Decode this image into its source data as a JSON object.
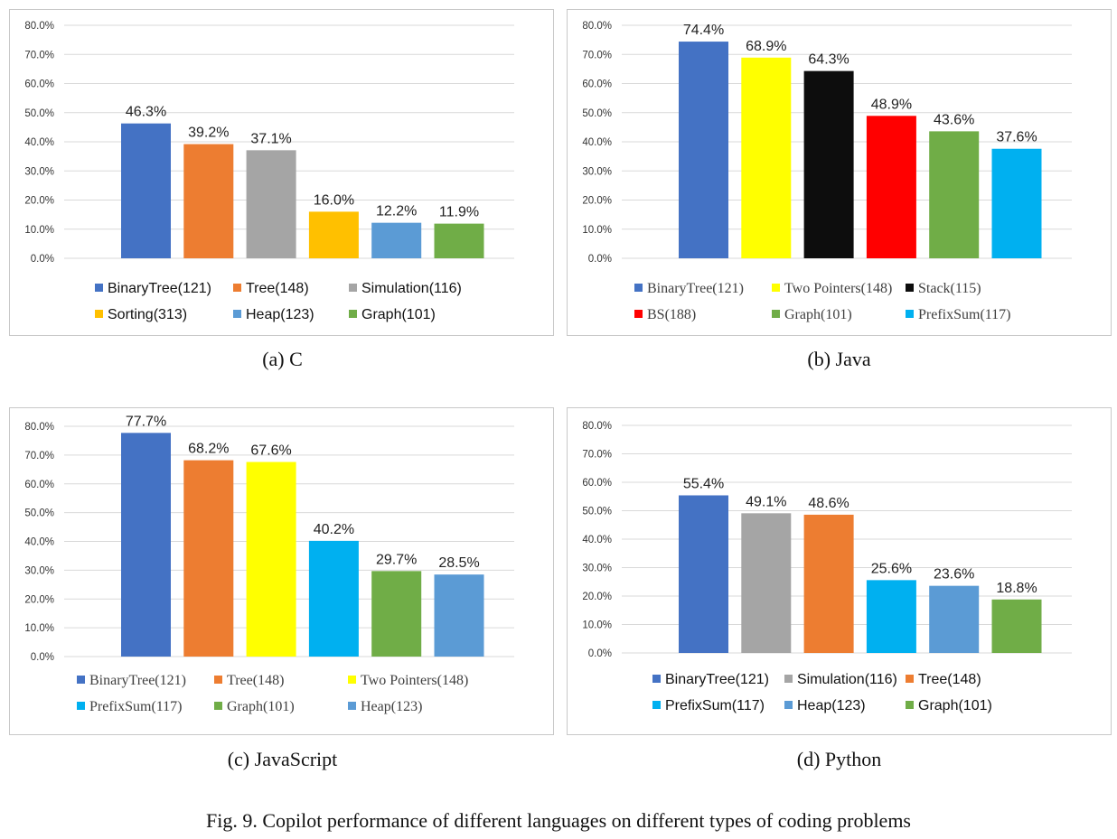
{
  "figure_caption": "Fig. 9.  Copilot performance of different languages on different types of coding problems",
  "chart_data": [
    {
      "type": "bar",
      "subcaption": "(a) C",
      "categories": [
        "BinaryTree(121)",
        "Tree(148)",
        "Simulation(116)",
        "Sorting(313)",
        "Heap(123)",
        "Graph(101)"
      ],
      "values": [
        46.3,
        39.2,
        37.1,
        16.0,
        12.2,
        11.9
      ],
      "value_labels": [
        "46.3%",
        "39.2%",
        "37.1%",
        "16.0%",
        "12.2%",
        "11.9%"
      ],
      "colors": [
        "#4472c4",
        "#ed7d31",
        "#a5a5a5",
        "#ffc000",
        "#5b9bd5",
        "#70ad47"
      ],
      "yticks": [
        "0.0%",
        "10.0%",
        "20.0%",
        "30.0%",
        "40.0%",
        "50.0%",
        "60.0%",
        "70.0%",
        "80.0%"
      ],
      "ylim": [
        0,
        80
      ],
      "grid": true,
      "legend_position": "bottom"
    },
    {
      "type": "bar",
      "subcaption": "(b) Java",
      "categories": [
        "BinaryTree(121)",
        "Two Pointers(148)",
        "Stack(115)",
        "BS(188)",
        "Graph(101)",
        "PrefixSum(117)"
      ],
      "values": [
        74.4,
        68.9,
        64.3,
        48.9,
        43.6,
        37.6
      ],
      "value_labels": [
        "74.4%",
        "68.9%",
        "64.3%",
        "48.9%",
        "43.6%",
        "37.6%"
      ],
      "colors": [
        "#4472c4",
        "#ffff00",
        "#0d0d0d",
        "#ff0000",
        "#70ad47",
        "#00b0f0"
      ],
      "yticks": [
        "0.0%",
        "10.0%",
        "20.0%",
        "30.0%",
        "40.0%",
        "50.0%",
        "60.0%",
        "70.0%",
        "80.0%"
      ],
      "ylim": [
        0,
        80
      ],
      "grid": true,
      "legend_position": "bottom"
    },
    {
      "type": "bar",
      "subcaption": "(c) JavaScript",
      "categories": [
        "BinaryTree(121)",
        "Tree(148)",
        "Two Pointers(148)",
        "PrefixSum(117)",
        "Graph(101)",
        "Heap(123)"
      ],
      "values": [
        77.7,
        68.2,
        67.6,
        40.2,
        29.7,
        28.5
      ],
      "value_labels": [
        "77.7%",
        "68.2%",
        "67.6%",
        "40.2%",
        "29.7%",
        "28.5%"
      ],
      "colors": [
        "#4472c4",
        "#ed7d31",
        "#ffff00",
        "#00b0f0",
        "#70ad47",
        "#5b9bd5"
      ],
      "yticks": [
        "0.0%",
        "10.0%",
        "20.0%",
        "30.0%",
        "40.0%",
        "50.0%",
        "60.0%",
        "70.0%",
        "80.0%"
      ],
      "ylim": [
        0,
        80
      ],
      "grid": true,
      "legend_position": "bottom"
    },
    {
      "type": "bar",
      "subcaption": "(d) Python",
      "categories": [
        "BinaryTree(121)",
        "Simulation(116)",
        "Tree(148)",
        "PrefixSum(117)",
        "Heap(123)",
        "Graph(101)"
      ],
      "values": [
        55.4,
        49.1,
        48.6,
        25.6,
        23.6,
        18.8
      ],
      "value_labels": [
        "55.4%",
        "49.1%",
        "48.6%",
        "25.6%",
        "23.6%",
        "18.8%"
      ],
      "colors": [
        "#4472c4",
        "#a5a5a5",
        "#ed7d31",
        "#00b0f0",
        "#5b9bd5",
        "#70ad47"
      ],
      "yticks": [
        "0.0%",
        "10.0%",
        "20.0%",
        "30.0%",
        "40.0%",
        "50.0%",
        "60.0%",
        "70.0%",
        "80.0%"
      ],
      "ylim": [
        0,
        80
      ],
      "grid": true,
      "legend_position": "bottom"
    }
  ]
}
